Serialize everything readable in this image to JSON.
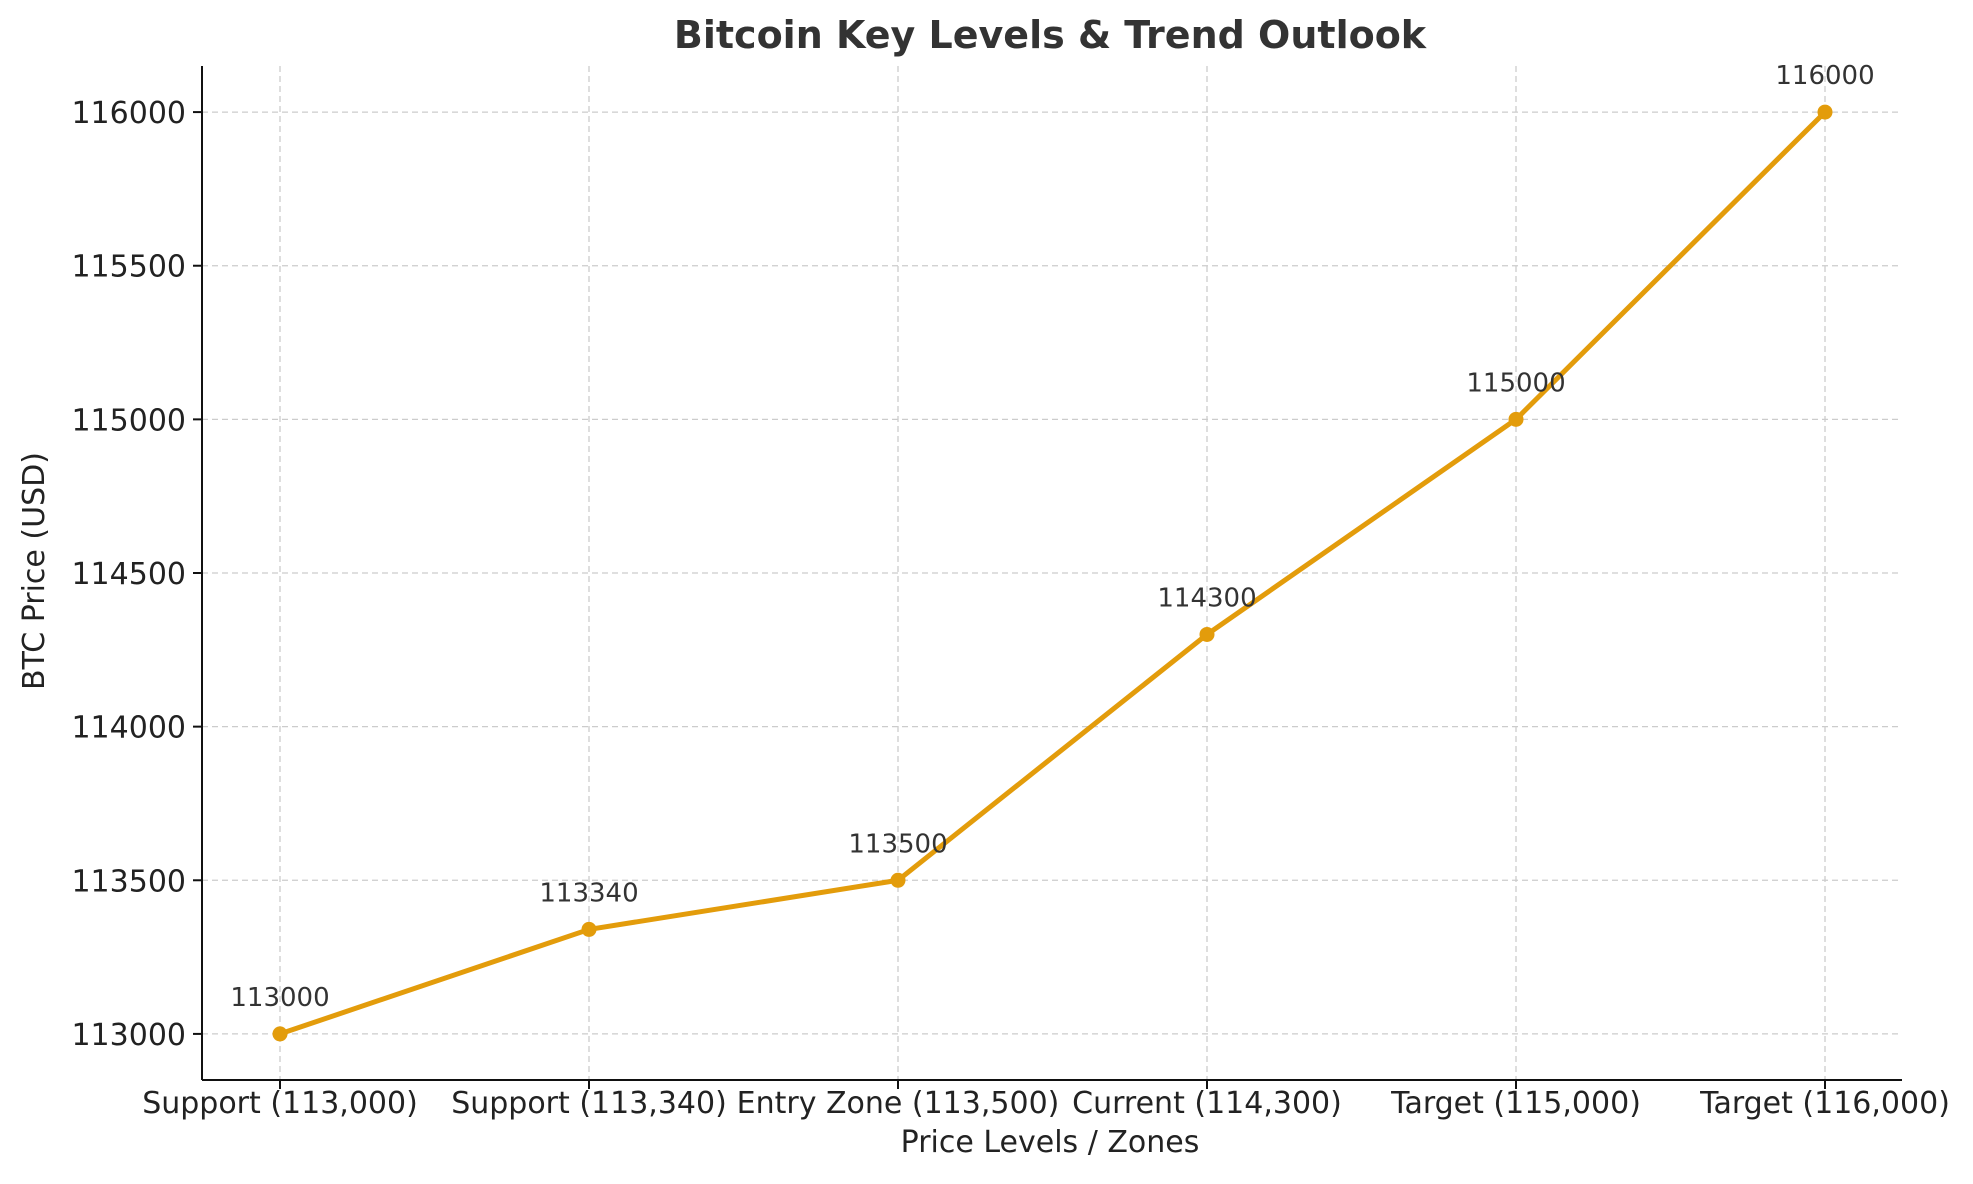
{
  "chart_data": {
    "type": "line",
    "title": "Bitcoin Key Levels & Trend Outlook",
    "xlabel": "Price Levels / Zones",
    "ylabel": "BTC Price (USD)",
    "categories": [
      "Support (113,000)",
      "Support (113,340)",
      "Entry Zone (113,500)",
      "Current (114,300)",
      "Target (115,000)",
      "Target (116,000)"
    ],
    "series": [
      {
        "values": [
          113000,
          113340,
          113500,
          114300,
          115000,
          116000
        ],
        "color": "#E39C0B"
      }
    ],
    "data_labels": [
      "113000",
      "113340",
      "113500",
      "114300",
      "115000",
      "116000"
    ],
    "ylim": [
      112850,
      116150
    ],
    "yticks": [
      113000,
      113500,
      114000,
      114500,
      115000,
      115500,
      116000
    ],
    "ytick_labels": [
      "113000",
      "113500",
      "114000",
      "114500",
      "115000",
      "115500",
      "116000"
    ],
    "grid": true,
    "marker": "circle"
  }
}
